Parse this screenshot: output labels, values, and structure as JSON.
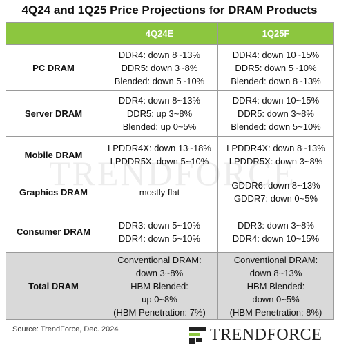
{
  "title": "4Q24 and 1Q25 Price Projections for DRAM Products",
  "table": {
    "header": [
      "4Q24E",
      "1Q25F"
    ],
    "rows": [
      {
        "label": "PC DRAM",
        "cells": [
          [
            "DDR4: down 8~13%",
            "DDR5: down 3~8%",
            "Blended: down 5~10%"
          ],
          [
            "DDR4: down 10~15%",
            "DDR5: down 5~10%",
            "Blended: down 8~13%"
          ]
        ]
      },
      {
        "label": "Server DRAM",
        "cells": [
          [
            "DDR4: down 8~13%",
            "DDR5: up 3~8%",
            "Blended: up 0~5%"
          ],
          [
            "DDR4: down 10~15%",
            "DDR5: down 3~8%",
            "Blended: down 5~10%"
          ]
        ]
      },
      {
        "label": "Mobile DRAM",
        "cells": [
          [
            "LPDDR4X: down 13~18%",
            "LPDDR5X: down 5~10%"
          ],
          [
            "LPDDR4X: down 8~13%",
            "LPDDR5X: down 3~8%"
          ]
        ]
      },
      {
        "label": "Graphics DRAM",
        "cells": [
          [
            "mostly flat"
          ],
          [
            "GDDR6: down 8~13%",
            "GDDR7: down 0~5%"
          ]
        ]
      },
      {
        "label": "Consumer DRAM",
        "cells": [
          [
            "DDR3: down 5~10%",
            "DDR4: down 5~10%"
          ],
          [
            "DDR3: down 3~8%",
            "DDR4: down 10~15%"
          ]
        ]
      },
      {
        "label": "Total DRAM",
        "cells": [
          [
            "Conventional DRAM:",
            "down 3~8%",
            "HBM Blended:",
            "up 0~8%",
            "(HBM Penetration: 7%)"
          ],
          [
            "Conventional DRAM:",
            "down 8~13%",
            "HBM Blended:",
            "down 0~5%",
            "(HBM Penetration: 8%)"
          ]
        ]
      }
    ]
  },
  "watermark": "TRENDFORCE",
  "source": "Source: TrendForce, Dec. 2024",
  "logo": "TRENDFORCE"
}
